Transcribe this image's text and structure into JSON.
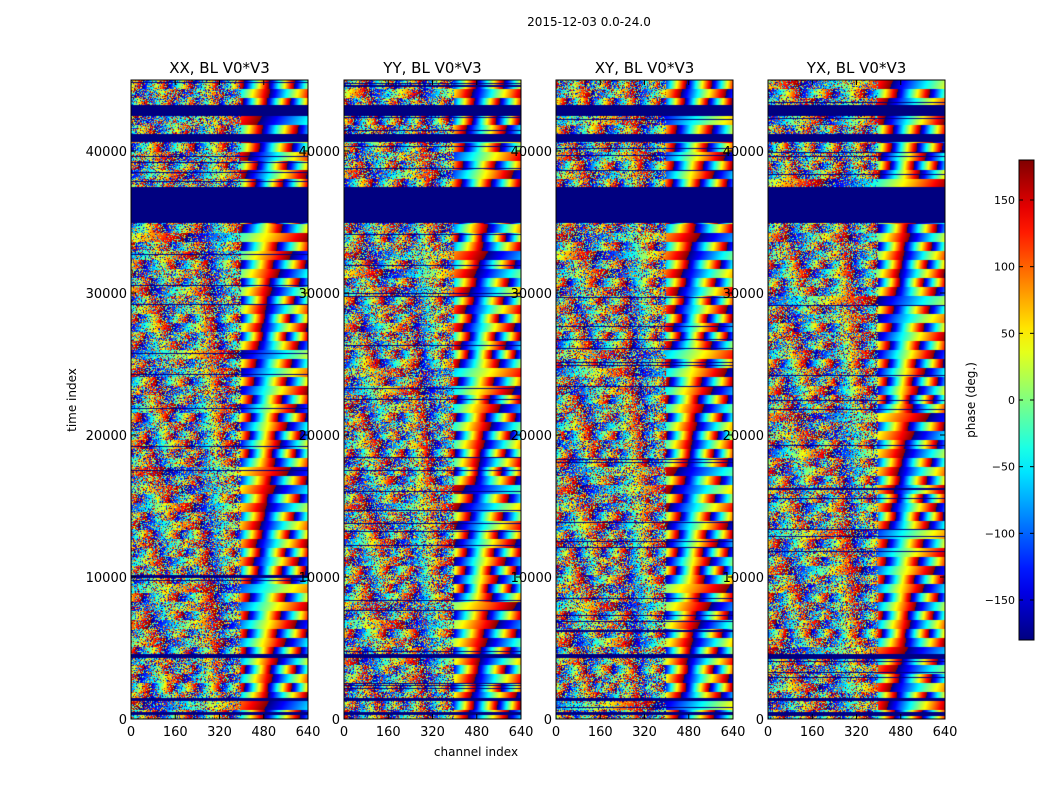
{
  "chart_data": {
    "type": "heatmap",
    "title": "2015-12-03 0.0-24.0",
    "xlabel": "channel index",
    "ylabel": "time index",
    "xlim": [
      0,
      640
    ],
    "ylim": [
      0,
      45000
    ],
    "xticks": [
      0,
      160,
      320,
      480,
      640
    ],
    "yticks": [
      0,
      10000,
      20000,
      30000,
      40000
    ],
    "xtick_labels": [
      "0",
      "160",
      "320",
      "480",
      "640"
    ],
    "ytick_labels": [
      "0",
      "10000",
      "20000",
      "30000",
      "40000"
    ],
    "colorbar": {
      "label": "phase (deg.)",
      "range": [
        -180,
        180
      ],
      "ticks": [
        -150,
        -100,
        -50,
        0,
        50,
        100,
        150
      ],
      "tick_labels": [
        "−150",
        "−100",
        "−50",
        "0",
        "50",
        "100",
        "150"
      ],
      "colormap": "jet"
    },
    "panels": [
      {
        "title": "XX, BL V0*V3",
        "seed": 11
      },
      {
        "title": "YY, BL V0*V3",
        "seed": 23
      },
      {
        "title": "XY, BL V0*V3",
        "seed": 37
      },
      {
        "title": "YX, BL V0*V3",
        "seed": 53
      }
    ],
    "masked_time_ranges": [
      [
        35000,
        37500
      ],
      [
        42500,
        43300
      ],
      [
        40700,
        41200
      ],
      [
        300,
        500
      ],
      [
        1300,
        1500
      ],
      [
        4300,
        4600
      ]
    ]
  }
}
